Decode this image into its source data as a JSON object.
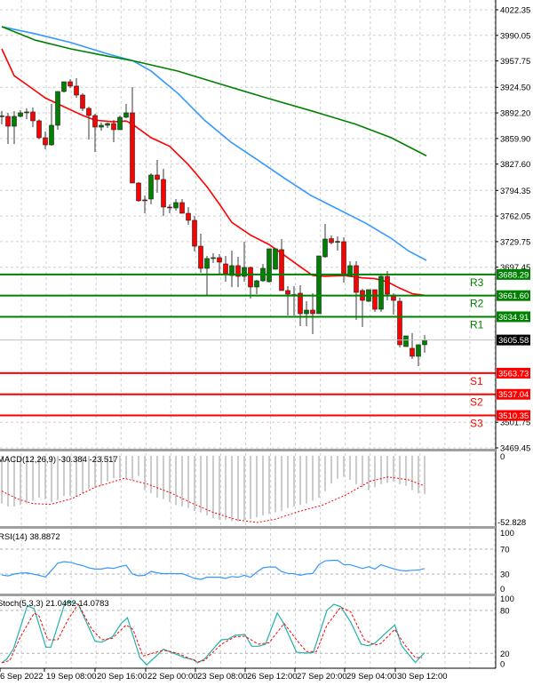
{
  "chart_data": {
    "type": "candlestick",
    "ylim": [
      3469.45,
      4022.35
    ],
    "price_ticks": [
      "4022.35",
      "3990.05",
      "3957.75",
      "3924.50",
      "3892.20",
      "3859.90",
      "3827.60",
      "3794.35",
      "3762.05",
      "3729.75",
      "3697.45",
      "3501.75",
      "3469.45"
    ],
    "price_tick_values": [
      4022.35,
      3990.05,
      3957.75,
      3924.5,
      3892.2,
      3859.9,
      3827.6,
      3794.35,
      3762.05,
      3729.75,
      3697.45,
      3501.75,
      3469.45
    ],
    "x_ticks": [
      "6 Sep 2022",
      "19 Sep 08:00",
      "20 Sep 16:00",
      "22 Sep 00:00",
      "23 Sep 08:00",
      "26 Sep 12:00",
      "27 Sep 20:00",
      "29 Sep 04:00",
      "30 Sep 12:00"
    ],
    "candle_fields": [
      "open",
      "high",
      "low",
      "close"
    ],
    "candles": [
      [
        3887.8,
        3894.5,
        3877.7,
        3888.5
      ],
      [
        3887.8,
        3892.3,
        3853.0,
        3875.4
      ],
      [
        3875.4,
        3894.5,
        3853.0,
        3887.8
      ],
      [
        3887.8,
        3895.6,
        3886.7,
        3892.3
      ],
      [
        3892.3,
        3898.0,
        3884.4,
        3893.4
      ],
      [
        3893.4,
        3899.0,
        3874.3,
        3882.2
      ],
      [
        3882.2,
        3884.0,
        3859.0,
        3860.9
      ],
      [
        3860.9,
        3868.7,
        3846.3,
        3851.9
      ],
      [
        3851.9,
        3903.5,
        3850.8,
        3876.6
      ],
      [
        3876.6,
        3919.2,
        3871.0,
        3919.2
      ],
      [
        3919.2,
        3931.5,
        3918.0,
        3931.5
      ],
      [
        3931.5,
        3934.9,
        3923.7,
        3926.0
      ],
      [
        3926.0,
        3936.0,
        3911.3,
        3914.7
      ],
      [
        3914.7,
        3917.0,
        3894.5,
        3897.9
      ],
      [
        3897.9,
        3900.0,
        3858.6,
        3888.9
      ],
      [
        3888.9,
        3891.2,
        3842.9,
        3874.3
      ],
      [
        3874.3,
        3880.0,
        3869.8,
        3876.6
      ],
      [
        3876.6,
        3880.0,
        3873.2,
        3878.8
      ],
      [
        3878.8,
        3883.3,
        3855.3,
        3871.0
      ],
      [
        3871.0,
        3888.9,
        3871.0,
        3886.7
      ],
      [
        3886.7,
        3903.5,
        3885.5,
        3892.3
      ],
      [
        3892.3,
        3924.8,
        3803.7,
        3803.7
      ],
      [
        3803.7,
        3804.8,
        3780.1,
        3781.3
      ],
      [
        3782.4,
        3788.0,
        3765.5,
        3782.0
      ],
      [
        3783.5,
        3816.0,
        3776.8,
        3813.8
      ],
      [
        3813.8,
        3832.8,
        3791.3,
        3808.2
      ],
      [
        3808.2,
        3821.6,
        3762.2,
        3773.4
      ],
      [
        3773.4,
        3776.8,
        3765.5,
        3772.3
      ],
      [
        3772.3,
        3783.5,
        3768.9,
        3779.0
      ],
      [
        3779.0,
        3783.5,
        3765.5,
        3765.5
      ],
      [
        3765.5,
        3773.4,
        3751.0,
        3756.6
      ],
      [
        3756.6,
        3762.2,
        3717.3,
        3724.0
      ],
      [
        3724.0,
        3739.7,
        3690.4,
        3696.0
      ],
      [
        3696.0,
        3711.7,
        3661.2,
        3708.4
      ],
      [
        3708.4,
        3715.1,
        3702.7,
        3709.5
      ],
      [
        3709.5,
        3714.0,
        3689.3,
        3703.9
      ],
      [
        3701.6,
        3711.7,
        3679.2,
        3689.3
      ],
      [
        3687.0,
        3718.4,
        3672.5,
        3699.4
      ],
      [
        3699.4,
        3710.6,
        3672.5,
        3685.9
      ],
      [
        3685.9,
        3729.6,
        3679.2,
        3697.1
      ],
      [
        3697.1,
        3698.2,
        3657.9,
        3672.5
      ],
      [
        3672.5,
        3681.4,
        3663.5,
        3680.3
      ],
      [
        3680.3,
        3701.6,
        3679.2,
        3696.0
      ],
      [
        3679.2,
        3720.7,
        3678.1,
        3720.7
      ],
      [
        3694.9,
        3720.7,
        3694.9,
        3720.7
      ],
      [
        3719.6,
        3733.0,
        3668.0,
        3668.0
      ],
      [
        3668.0,
        3673.6,
        3636.6,
        3663.5
      ],
      [
        3662.4,
        3673.6,
        3636.6,
        3662.9
      ],
      [
        3664.6,
        3674.7,
        3623.1,
        3638.8
      ],
      [
        3638.8,
        3654.5,
        3623.1,
        3643.3
      ],
      [
        3643.3,
        3664.6,
        3613.0,
        3638.8
      ],
      [
        3638.8,
        3711.7,
        3638.8,
        3711.7
      ],
      [
        3710.6,
        3752.1,
        3709.5,
        3733.0
      ],
      [
        3733.5,
        3737.5,
        3726.3,
        3728.5
      ],
      [
        3729.6,
        3736.4,
        3718.4,
        3730.0
      ],
      [
        3729.6,
        3735.3,
        3678.1,
        3688.1
      ],
      [
        3685.9,
        3705.0,
        3685.9,
        3699.4
      ],
      [
        3699.4,
        3705.0,
        3631.0,
        3665.7
      ],
      [
        3668.0,
        3670.2,
        3622.0,
        3655.6
      ],
      [
        3654.5,
        3669.1,
        3653.4,
        3669.1
      ],
      [
        3669.1,
        3669.1,
        3641.1,
        3644.4
      ],
      [
        3644.4,
        3687.0,
        3641.1,
        3685.9
      ],
      [
        3685.9,
        3692.6,
        3655.6,
        3663.5
      ],
      [
        3661.2,
        3664.6,
        3637.7,
        3655.6
      ],
      [
        3654.5,
        3659.0,
        3596.2,
        3599.6
      ],
      [
        3597.3,
        3610.8,
        3597.3,
        3610.8
      ],
      [
        3595.1,
        3614.2,
        3581.6,
        3585.0
      ],
      [
        3585.0,
        3599.6,
        3572.6,
        3599.6
      ],
      [
        3599.6,
        3611.9,
        3589.5,
        3605.58
      ]
    ],
    "moving_averages": [
      {
        "color": "#ff0000",
        "points": [
          [
            0,
            3973
          ],
          [
            2,
            3939
          ],
          [
            4,
            3928
          ],
          [
            7,
            3911
          ],
          [
            10,
            3900
          ],
          [
            13,
            3889
          ],
          [
            15,
            3883
          ],
          [
            18,
            3881
          ],
          [
            20,
            3882
          ],
          [
            21,
            3878
          ],
          [
            24,
            3861
          ],
          [
            27,
            3850
          ],
          [
            30,
            3827
          ],
          [
            33,
            3799
          ],
          [
            35,
            3777
          ],
          [
            37,
            3754
          ],
          [
            40,
            3738
          ],
          [
            43,
            3726
          ],
          [
            45,
            3715
          ],
          [
            48,
            3698
          ],
          [
            50,
            3687
          ],
          [
            52,
            3686
          ],
          [
            55,
            3687
          ],
          [
            58,
            3684
          ],
          [
            60,
            3683
          ],
          [
            62,
            3679
          ],
          [
            64,
            3671
          ],
          [
            66,
            3664
          ],
          [
            68,
            3662
          ]
        ]
      },
      {
        "color": "#3399ff",
        "points": [
          [
            0,
            4001
          ],
          [
            5.4,
            3992
          ],
          [
            11.1,
            3981
          ],
          [
            16.9,
            3967
          ],
          [
            21.1,
            3958
          ],
          [
            24,
            3945
          ],
          [
            28.3,
            3917
          ],
          [
            32.6,
            3883
          ],
          [
            36.9,
            3855
          ],
          [
            41.1,
            3833
          ],
          [
            45.4,
            3810
          ],
          [
            49.7,
            3788
          ],
          [
            54,
            3771
          ],
          [
            58.3,
            3754
          ],
          [
            62.6,
            3734
          ],
          [
            65.4,
            3718
          ],
          [
            68.3,
            3706
          ]
        ]
      },
      {
        "color": "#008000",
        "points": [
          [
            0,
            4001
          ],
          [
            5.4,
            3984
          ],
          [
            11.1,
            3973
          ],
          [
            16.9,
            3964
          ],
          [
            21.1,
            3958
          ],
          [
            28.3,
            3945
          ],
          [
            35.4,
            3928
          ],
          [
            42.6,
            3911
          ],
          [
            49.7,
            3895
          ],
          [
            56.9,
            3878
          ],
          [
            62.6,
            3861
          ],
          [
            68.3,
            3838
          ]
        ]
      }
    ],
    "levels": [
      {
        "label": "R3",
        "value": "3688.29",
        "color": "#008000"
      },
      {
        "label": "R2",
        "value": "3661.60",
        "color": "#008000"
      },
      {
        "label": "R1",
        "value": "3634.91",
        "color": "#008000"
      },
      {
        "label": "S1",
        "value": "3563.73",
        "color": "#ff0000"
      },
      {
        "label": "S2",
        "value": "3537.04",
        "color": "#ff0000"
      },
      {
        "label": "S3",
        "value": "3510.35",
        "color": "#ff0000"
      }
    ],
    "current_price": "3605.58",
    "macd": {
      "header": "MACD(12,26,9) -30.384 -23.517",
      "axis_labels": [
        "0",
        "-52.828"
      ],
      "ylim": [
        -52.828,
        0
      ],
      "histogram": [
        -37.8,
        -40.2,
        -40.2,
        -39,
        -37.8,
        -35.5,
        -33.1,
        -34.3,
        -36.6,
        -34.8,
        -31.9,
        -31.9,
        -32.4,
        -29.6,
        -26.1,
        -24.9,
        -23.7,
        -20.2,
        -17.8,
        -17.8,
        -17.8,
        -19,
        -16,
        -27.2,
        -29.6,
        -33.1,
        -34.3,
        -36.6,
        -39,
        -40.2,
        -41.3,
        -43.7,
        -44.8,
        -47.2,
        -49.5,
        -50.7,
        -50.7,
        -51.9,
        -51.9,
        -50.7,
        -50.2,
        -48.8,
        -47.2,
        -46,
        -44.8,
        -43.7,
        -41.3,
        -40.2,
        -39,
        -37.8,
        -35.5,
        -33.1,
        -28,
        -22,
        -18,
        -16.7,
        -19,
        -22.5,
        -24.9,
        -27.2,
        -24.9,
        -22.5,
        -21.4,
        -20.2,
        -22.5,
        -23.7,
        -27.2,
        -29.6,
        -30.384
      ],
      "signal": [
        [
          0,
          -27.9
        ],
        [
          2.6,
          -34.3
        ],
        [
          5,
          -37.8
        ],
        [
          7.8,
          -38.5
        ],
        [
          11.1,
          -34.3
        ],
        [
          15,
          -24.9
        ],
        [
          19.7,
          -17.8
        ],
        [
          23.5,
          -22.5
        ],
        [
          27.3,
          -29.6
        ],
        [
          30.7,
          -37.8
        ],
        [
          34,
          -44.8
        ],
        [
          37.8,
          -50.7
        ],
        [
          41.1,
          -52.8
        ],
        [
          44,
          -50.2
        ],
        [
          47.3,
          -44.8
        ],
        [
          51.6,
          -39
        ],
        [
          55.4,
          -30.8
        ],
        [
          59.2,
          -20.2
        ],
        [
          62.1,
          -16.7
        ],
        [
          65.4,
          -19
        ],
        [
          67.8,
          -23.517
        ]
      ]
    },
    "rsi": {
      "header": "RSI(14) 38.8872",
      "axis_labels": [
        "100",
        "70",
        "30",
        "0"
      ],
      "levels": [
        70,
        30
      ],
      "ylim": [
        0,
        100
      ],
      "values": [
        28.6,
        27,
        30,
        31.5,
        32,
        30,
        28,
        25.3,
        36,
        47.4,
        49.8,
        48.8,
        46,
        43.6,
        40,
        38,
        38,
        40,
        39,
        42,
        44.1,
        30,
        27.2,
        28,
        34.2,
        32,
        30.5,
        30.8,
        30.5,
        30.7,
        27,
        23,
        21.5,
        24.8,
        24.8,
        24.8,
        23,
        26,
        24.8,
        28,
        24.8,
        33,
        40,
        41.3,
        41.3,
        34,
        31,
        30.5,
        28,
        30,
        30.9,
        45,
        51.2,
        52,
        52.1,
        45.1,
        45.1,
        42,
        38.9,
        41.8,
        38,
        45,
        41.5,
        38.5,
        36,
        35,
        36,
        36.5,
        38.8872
      ]
    },
    "stoch": {
      "header": "Stoch(5,3,3) 21.0482 14.0783",
      "axis_labels": [
        "100",
        "80",
        "20",
        "0"
      ],
      "levels": [
        80,
        20
      ],
      "ylim": [
        0,
        100
      ],
      "main": [
        [
          0,
          6.8
        ],
        [
          0.8,
          12.1
        ],
        [
          1.9,
          26.6
        ],
        [
          4.1,
          86.6
        ],
        [
          5.2,
          82.5
        ],
        [
          7.1,
          28.7
        ],
        [
          7.9,
          28.7
        ],
        [
          10.1,
          88.7
        ],
        [
          10.7,
          92.8
        ],
        [
          12.3,
          88.7
        ],
        [
          15,
          37
        ],
        [
          16.1,
          35.7
        ],
        [
          17.8,
          43.2
        ],
        [
          19.2,
          61.8
        ],
        [
          20.2,
          70
        ],
        [
          22.2,
          14.2
        ],
        [
          23.3,
          3.9
        ],
        [
          26,
          25.8
        ],
        [
          28.2,
          18.3
        ],
        [
          29.3,
          14.2
        ],
        [
          31,
          10.9
        ],
        [
          31.5,
          6.8
        ],
        [
          32.6,
          12.1
        ],
        [
          35.3,
          39
        ],
        [
          36.4,
          39.9
        ],
        [
          37.5,
          45.2
        ],
        [
          39.1,
          46.5
        ],
        [
          40.2,
          29.9
        ],
        [
          41.3,
          29.9
        ],
        [
          42.4,
          32.8
        ],
        [
          44.3,
          76.3
        ],
        [
          45.2,
          63.9
        ],
        [
          47.4,
          21.7
        ],
        [
          49,
          20.4
        ],
        [
          50.1,
          21.2
        ],
        [
          52.3,
          80.4
        ],
        [
          53.4,
          88.7
        ],
        [
          54.5,
          85.4
        ],
        [
          56.1,
          63.9
        ],
        [
          57.8,
          32.8
        ],
        [
          58.9,
          30.8
        ],
        [
          60,
          34.1
        ],
        [
          61.6,
          47.3
        ],
        [
          63.2,
          59.7
        ],
        [
          64.3,
          30.8
        ],
        [
          66.5,
          7.2
        ],
        [
          68,
          21.0482
        ]
      ],
      "signal": [
        [
          0,
          6.8
        ],
        [
          1.3,
          10.1
        ],
        [
          3,
          43.2
        ],
        [
          5.2,
          76.3
        ],
        [
          6,
          72.1
        ],
        [
          7.4,
          39
        ],
        [
          9,
          39
        ],
        [
          10.7,
          68
        ],
        [
          12.3,
          88.7
        ],
        [
          14.5,
          53.5
        ],
        [
          16.1,
          39
        ],
        [
          17.8,
          41.1
        ],
        [
          20,
          59.7
        ],
        [
          21.1,
          53.5
        ],
        [
          22.7,
          16.3
        ],
        [
          26,
          24.6
        ],
        [
          28.2,
          20.4
        ],
        [
          31.5,
          8
        ],
        [
          32.6,
          10.1
        ],
        [
          35.3,
          32.8
        ],
        [
          37.5,
          43.2
        ],
        [
          39.1,
          44
        ],
        [
          41.3,
          32.8
        ],
        [
          43,
          35
        ],
        [
          45.4,
          61.8
        ],
        [
          47.4,
          39
        ],
        [
          49,
          22.5
        ],
        [
          50.6,
          22.5
        ],
        [
          52.3,
          59.7
        ],
        [
          54.5,
          84.5
        ],
        [
          56.1,
          78.3
        ],
        [
          58.3,
          39
        ],
        [
          60,
          31.6
        ],
        [
          61,
          34.1
        ],
        [
          63.2,
          53.5
        ],
        [
          64.9,
          30.8
        ],
        [
          66.5,
          14.2
        ],
        [
          67.6,
          14.0783
        ]
      ]
    },
    "colors": {
      "bull": "#008000",
      "bear": "#ff0000",
      "rsi": "#3399ff",
      "stoch_main": "#20b2aa",
      "stoch_signal": "#ff0000",
      "macd_hist": "#c0c0c0",
      "macd_signal": "#ff0000"
    }
  }
}
